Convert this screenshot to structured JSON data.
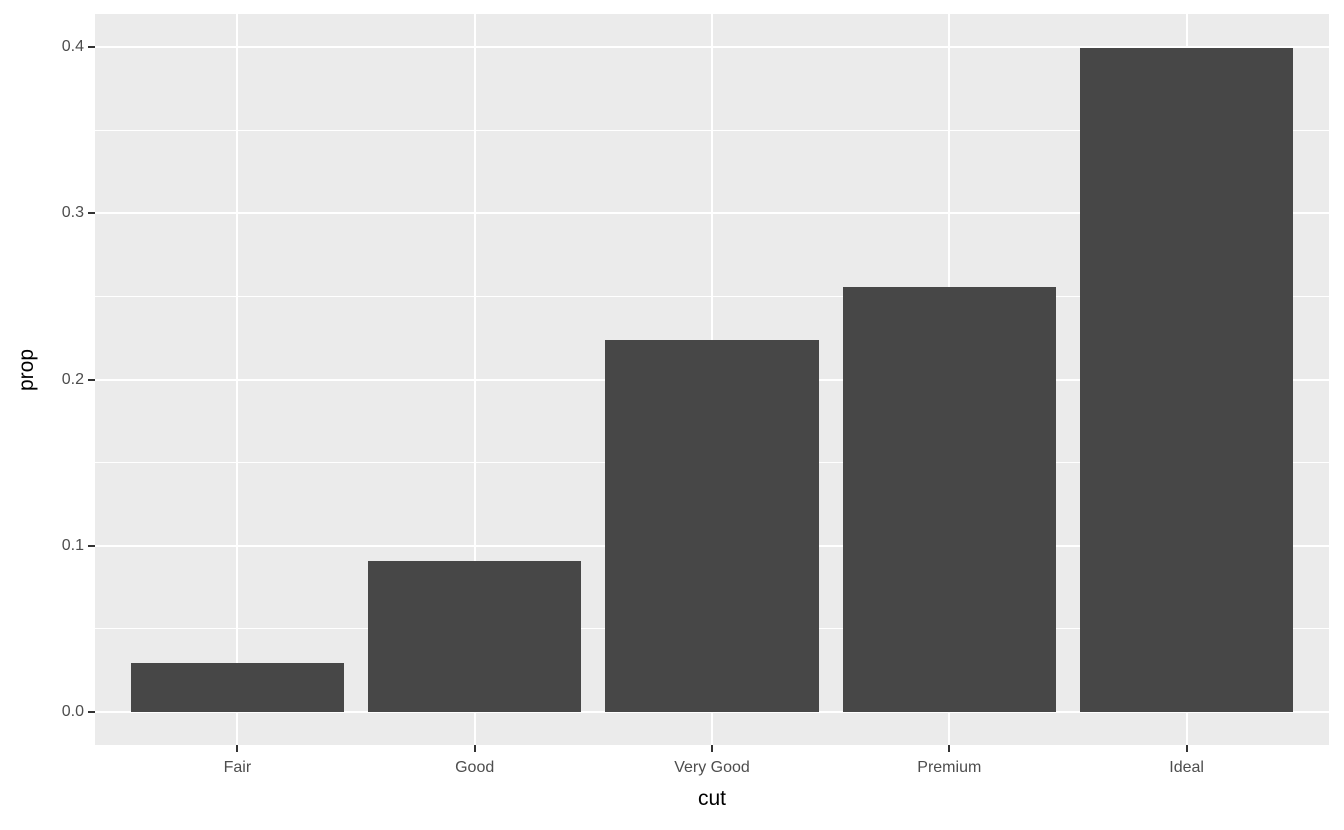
{
  "chart_data": {
    "type": "bar",
    "categories": [
      "Fair",
      "Good",
      "Very Good",
      "Premium",
      "Ideal"
    ],
    "values": [
      0.0295,
      0.091,
      0.224,
      0.2557,
      0.3995
    ],
    "title": "",
    "xlabel": "cut",
    "ylabel": "prop",
    "ylim": [
      -0.02,
      0.42
    ],
    "yticks": [
      0.0,
      0.1,
      0.2,
      0.3,
      0.4
    ],
    "ytick_labels": [
      "0.0",
      "0.1",
      "0.2",
      "0.3",
      "0.4"
    ],
    "yminor_ticks": [
      0.05,
      0.15,
      0.25,
      0.35
    ],
    "bar_width_fraction": 0.9,
    "grid": "major-and-minor-horizontal, major-vertical",
    "legend_position": "none",
    "style": {
      "figure_bg": "#FFFFFF",
      "panel_bg": "#EBEBEB",
      "bar_fill": "#474747",
      "grid_major_color": "#FFFFFF",
      "grid_minor_color": "#FFFFFF",
      "tick_label_color": "#4D4D4D",
      "axis_title_color": "#000000",
      "tick_mark_color": "#333333"
    }
  }
}
